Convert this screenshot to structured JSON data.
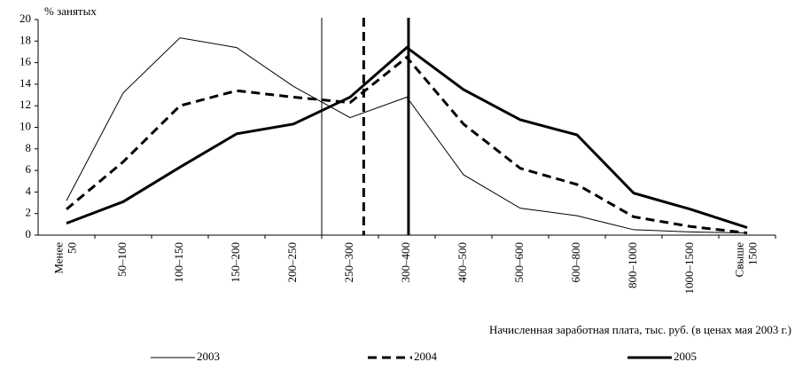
{
  "chart_data": {
    "type": "line",
    "y_axis_label": "% занятых",
    "x_axis_label": "Начисленная заработная плата, тыс. руб. (в ценах мая 2003 г.)",
    "categories": [
      "Менее 50",
      "50–100",
      "100–150",
      "150–200",
      "200–250",
      "250–300",
      "300–400",
      "400–500",
      "500–600",
      "600–800",
      "800–1000",
      "1000–1500",
      "Свыше 1500"
    ],
    "series": [
      {
        "name": "2003",
        "color": "#000",
        "width": 1,
        "dash": "none",
        "vline_x": 4.5,
        "values": [
          3.2,
          13.2,
          18.3,
          17.4,
          13.8,
          10.9,
          12.8,
          5.6,
          2.5,
          1.8,
          0.5,
          0.3,
          0.2
        ]
      },
      {
        "name": "2004",
        "color": "#000",
        "width": 3,
        "dash": "10,6",
        "vline_x": 5.24,
        "values": [
          2.4,
          6.8,
          12,
          13.4,
          12.8,
          12.3,
          16.5,
          10.3,
          6.2,
          4.7,
          1.7,
          0.8,
          0.2
        ]
      },
      {
        "name": "2005",
        "color": "#000",
        "width": 3,
        "dash": "none",
        "vline_x": 6.03,
        "values": [
          1.1,
          3.1,
          6.3,
          9.4,
          10.3,
          12.8,
          17.4,
          13.5,
          10.7,
          9.3,
          3.9,
          2.4,
          0.7
        ]
      }
    ],
    "ylim": [
      0,
      20
    ],
    "yticks": [
      0,
      2,
      4,
      6,
      8,
      10,
      12,
      14,
      16,
      18,
      20
    ]
  }
}
